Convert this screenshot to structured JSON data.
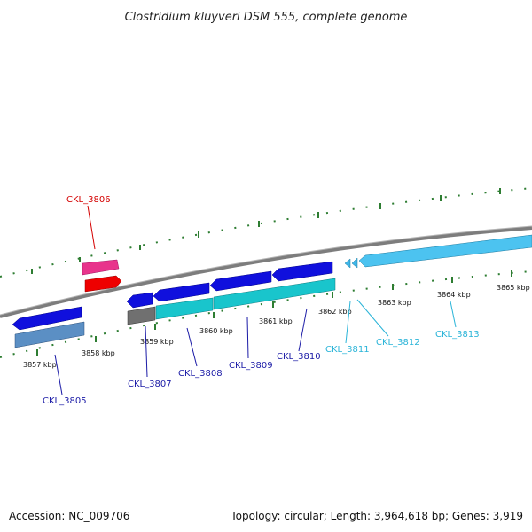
{
  "title": "Clostridium kluyveri DSM 555, complete genome",
  "footer": {
    "accession": "Accession: NC_009706",
    "topology": "Topology: circular; Length: 3,964,618 bp; Genes: 3,919"
  },
  "colors": {
    "backbone": "#888888",
    "tick": "#2e7d32",
    "red_label": "#d40000",
    "blue_label": "#1a1aa6",
    "cyan_label": "#2ab4d8"
  },
  "ticks": [
    {
      "label": "3857 kbp"
    },
    {
      "label": "3858 kbp"
    },
    {
      "label": "3859 kbp"
    },
    {
      "label": "3860 kbp"
    },
    {
      "label": "3861 kbp"
    },
    {
      "label": "3862 kbp"
    },
    {
      "label": "3863 kbp"
    },
    {
      "label": "3864 kbp"
    },
    {
      "label": "3865 kbp"
    }
  ],
  "genes": [
    {
      "label": "CKL_3806",
      "color": "#d40000"
    },
    {
      "label": "CKL_3805",
      "color": "#1a1aa6"
    },
    {
      "label": "CKL_3807",
      "color": "#1a1aa6"
    },
    {
      "label": "CKL_3808",
      "color": "#1a1aa6"
    },
    {
      "label": "CKL_3809",
      "color": "#1a1aa6"
    },
    {
      "label": "CKL_3810",
      "color": "#1a1aa6"
    },
    {
      "label": "CKL_3811",
      "color": "#2ab4d8"
    },
    {
      "label": "CKL_3812",
      "color": "#2ab4d8"
    },
    {
      "label": "CKL_3813",
      "color": "#2ab4d8"
    }
  ]
}
